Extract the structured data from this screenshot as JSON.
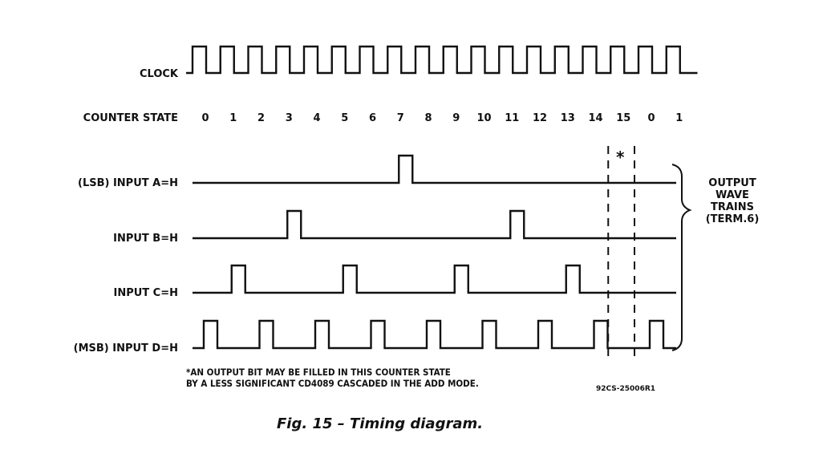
{
  "diagram": {
    "clock_label": "CLOCK",
    "counter_state_label": "COUNTER STATE",
    "counter_states": [
      "0",
      "1",
      "2",
      "3",
      "4",
      "5",
      "6",
      "7",
      "8",
      "9",
      "10",
      "11",
      "12",
      "13",
      "14",
      "15",
      "0",
      "1"
    ],
    "signals": [
      {
        "label": "(LSB) INPUT A=H",
        "pulse_states": [
          7
        ]
      },
      {
        "label": "INPUT B=H",
        "pulse_states": [
          3,
          11
        ]
      },
      {
        "label": "INPUT C=H",
        "pulse_states": [
          1,
          5,
          9,
          13
        ]
      },
      {
        "label": "(MSB) INPUT D=H",
        "pulse_states": [
          0,
          2,
          4,
          6,
          8,
          10,
          12,
          14,
          16
        ]
      }
    ],
    "asterisk": "*",
    "bracket_label_lines": [
      "OUTPUT",
      "WAVE",
      "TRAINS",
      "(TERM.6)"
    ],
    "footnote_lines": [
      "*AN OUTPUT BIT MAY BE FILLED IN THIS COUNTER STATE",
      "BY A LESS SIGNIFICANT CD4089 CASCADED IN THE ADD MODE."
    ],
    "figure_code": "92CS-25006R1",
    "caption": "Fig. 15 –  Timing diagram."
  }
}
